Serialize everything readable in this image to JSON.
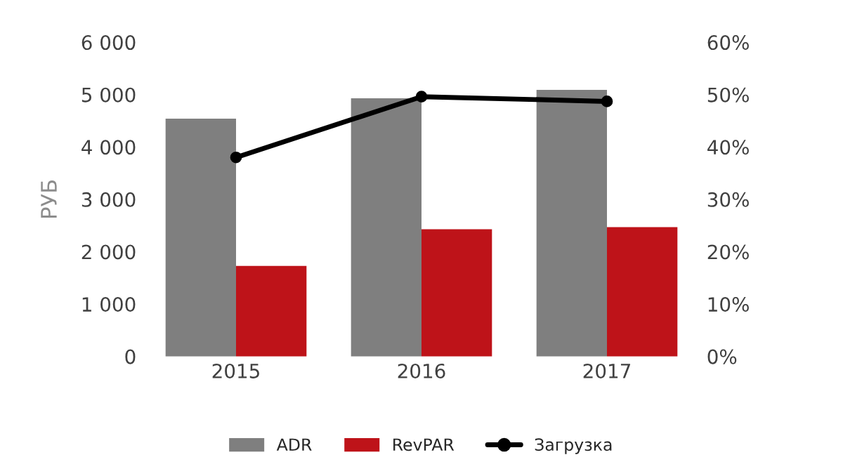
{
  "chart_data": {
    "type": "bar",
    "categories": [
      "2015",
      "2016",
      "2017"
    ],
    "ylabel": "РУБ",
    "series": [
      {
        "name": "ADR",
        "color": "#7f7f7f",
        "values": [
          4540,
          4930,
          5090
        ]
      },
      {
        "name": "RevPAR",
        "color": "#be1319",
        "values": [
          1730,
          2430,
          2470
        ]
      },
      {
        "name": "Загрузка",
        "type": "line",
        "axis": "y2",
        "color": "#000000",
        "values": [
          38.0,
          49.6,
          48.7
        ]
      }
    ],
    "ylim": [
      0,
      6000
    ],
    "yticks": [
      {
        "value": 0,
        "label": "0"
      },
      {
        "value": 1000,
        "label": "1 000"
      },
      {
        "value": 2000,
        "label": "2 000"
      },
      {
        "value": 3000,
        "label": "3 000"
      },
      {
        "value": 4000,
        "label": "4 000"
      },
      {
        "value": 5000,
        "label": "5 000"
      },
      {
        "value": 6000,
        "label": "6 000"
      }
    ],
    "y2lim": [
      0,
      60
    ],
    "y2ticks": [
      {
        "value": 0,
        "label": "0%"
      },
      {
        "value": 10,
        "label": "10%"
      },
      {
        "value": 20,
        "label": "20%"
      },
      {
        "value": 30,
        "label": "30%"
      },
      {
        "value": 40,
        "label": "40%"
      },
      {
        "value": 50,
        "label": "50%"
      },
      {
        "value": 60,
        "label": "60%"
      }
    ],
    "grid": false,
    "legend": "bottom",
    "marker": "circle",
    "line_style": "solid"
  }
}
